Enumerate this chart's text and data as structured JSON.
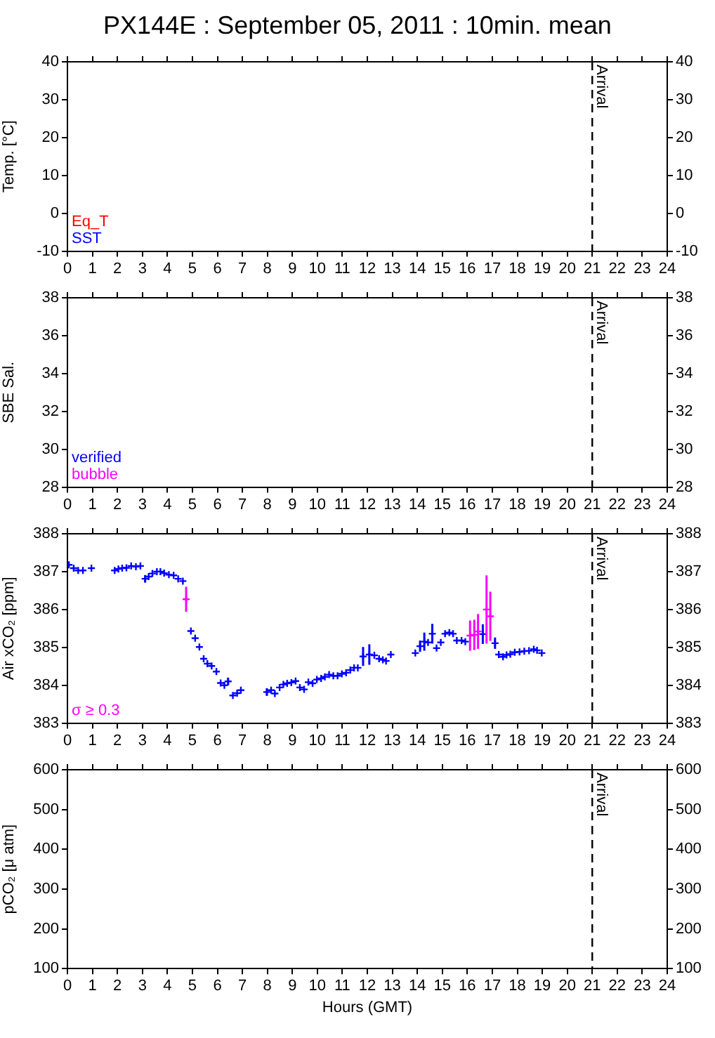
{
  "chart_data": [
    {
      "type": "scatter",
      "title": "PX144E : September 05, 2011 : 10min. mean",
      "ylabel": "Temp. [°C]",
      "xlim": [
        0,
        24
      ],
      "xticks": [
        0,
        1,
        2,
        3,
        4,
        5,
        6,
        7,
        8,
        9,
        10,
        11,
        12,
        13,
        14,
        15,
        16,
        17,
        18,
        19,
        20,
        21,
        22,
        23,
        24
      ],
      "ylim": [
        -10,
        40
      ],
      "yticks": [
        -10,
        0,
        10,
        20,
        30,
        40
      ],
      "y2lim": [
        -10,
        40
      ],
      "y2ticks": [
        -10,
        0,
        10,
        20,
        30,
        40
      ],
      "grid": false,
      "marker": "cross",
      "ref_lines": [
        {
          "axis": "x",
          "value": 21,
          "label": "Arrival",
          "line_style": "dashed"
        }
      ],
      "series": [
        {
          "name": "Eq_T",
          "color": "#ff0000",
          "x": [
            null
          ],
          "values": [
            null
          ]
        },
        {
          "name": "SST",
          "color": "#0000ff",
          "x": [
            null
          ],
          "values": [
            null
          ]
        }
      ]
    },
    {
      "type": "scatter",
      "ylabel": "SBE Sal.",
      "xlim": [
        0,
        24
      ],
      "xticks": [
        0,
        1,
        2,
        3,
        4,
        5,
        6,
        7,
        8,
        9,
        10,
        11,
        12,
        13,
        14,
        15,
        16,
        17,
        18,
        19,
        20,
        21,
        22,
        23,
        24
      ],
      "ylim": [
        28,
        38
      ],
      "yticks": [
        28,
        30,
        32,
        34,
        36,
        38
      ],
      "y2lim": [
        28,
        38
      ],
      "y2ticks": [
        28,
        30,
        32,
        34,
        36,
        38
      ],
      "grid": false,
      "marker": "cross",
      "ref_lines": [
        {
          "axis": "x",
          "value": 21,
          "label": "Arrival",
          "line_style": "dashed"
        }
      ],
      "series": [
        {
          "name": "verified",
          "color": "#0000ff",
          "x": [
            null
          ],
          "values": [
            null
          ]
        },
        {
          "name": "bubble",
          "color": "#ff00ff",
          "x": [
            null
          ],
          "values": [
            null
          ]
        }
      ]
    },
    {
      "type": "scatter",
      "ylabel": "Air xCO₂ [ppm]",
      "xlim": [
        0,
        24
      ],
      "xticks": [
        0,
        1,
        2,
        3,
        4,
        5,
        6,
        7,
        8,
        9,
        10,
        11,
        12,
        13,
        14,
        15,
        16,
        17,
        18,
        19,
        20,
        21,
        22,
        23,
        24
      ],
      "ylim": [
        383,
        388
      ],
      "yticks": [
        383,
        384,
        385,
        386,
        387,
        388
      ],
      "y2lim": [
        383,
        388
      ],
      "y2ticks": [
        383,
        384,
        385,
        386,
        387,
        388
      ],
      "grid": false,
      "marker": "cross",
      "ref_lines": [
        {
          "axis": "x",
          "value": 21,
          "label": "Arrival",
          "line_style": "dashed"
        }
      ],
      "series": [
        {
          "color": "#0000ff",
          "x": [
            0.06,
            0.25,
            0.43,
            0.62,
            0.96,
            1.89,
            2.04,
            2.19,
            2.36,
            2.55,
            2.74,
            2.92,
            3.11,
            3.25,
            3.4,
            3.58,
            3.72,
            3.87,
            4.06,
            4.25,
            4.43,
            4.62,
            4.94,
            5.11,
            5.28,
            5.45,
            5.6,
            5.77,
            5.96,
            6.13,
            6.28,
            6.43,
            6.62,
            6.79,
            6.94,
            7.98,
            8.15,
            8.3,
            8.49,
            8.64,
            8.79,
            8.96,
            9.13,
            9.3,
            9.47,
            9.64,
            9.81,
            9.98,
            10.15,
            10.3,
            10.47,
            10.64,
            10.81,
            10.98,
            11.15,
            11.32,
            11.47,
            11.62,
            11.83,
            12.08,
            12.28,
            12.47,
            12.62,
            12.75,
            12.94,
            13.92,
            14.11,
            14.28,
            14.43,
            14.6,
            14.77,
            14.94,
            15.11,
            15.28,
            15.43,
            15.58,
            15.77,
            15.92,
            16.62,
            17.11,
            17.26,
            17.43,
            17.57,
            17.72,
            17.9,
            18.09,
            18.28,
            18.47,
            18.66,
            18.79,
            18.98
          ],
          "values": [
            387.18,
            387.09,
            387.03,
            387.03,
            387.09,
            387.03,
            387.07,
            387.09,
            387.1,
            387.15,
            387.13,
            387.15,
            386.81,
            386.87,
            386.95,
            387.0,
            387.0,
            386.96,
            386.92,
            386.9,
            386.81,
            386.75,
            385.43,
            385.24,
            385.01,
            384.7,
            384.57,
            384.51,
            384.36,
            384.06,
            384.0,
            384.1,
            383.73,
            383.79,
            383.87,
            383.82,
            383.87,
            383.78,
            383.94,
            384.02,
            384.05,
            384.07,
            384.11,
            383.94,
            383.89,
            384.08,
            384.05,
            384.15,
            384.18,
            384.22,
            384.28,
            384.25,
            384.25,
            384.3,
            384.33,
            384.4,
            384.46,
            384.46,
            384.76,
            384.81,
            384.79,
            384.7,
            384.67,
            384.64,
            384.81,
            384.85,
            385.03,
            385.15,
            385.13,
            385.36,
            384.98,
            385.13,
            385.36,
            385.39,
            385.36,
            385.18,
            385.18,
            385.15,
            385.35,
            385.11,
            384.81,
            384.75,
            384.8,
            384.82,
            384.87,
            384.88,
            384.9,
            384.91,
            384.95,
            384.92,
            384.85
          ],
          "errors": [
            null,
            null,
            null,
            null,
            null,
            null,
            null,
            null,
            null,
            null,
            null,
            null,
            0.1,
            null,
            null,
            null,
            null,
            null,
            null,
            null,
            null,
            null,
            null,
            null,
            null,
            null,
            null,
            null,
            null,
            null,
            null,
            0.1,
            null,
            null,
            null,
            0.1,
            null,
            null,
            null,
            null,
            null,
            null,
            null,
            null,
            null,
            null,
            null,
            null,
            null,
            null,
            null,
            null,
            null,
            null,
            null,
            null,
            null,
            null,
            0.25,
            0.27,
            null,
            null,
            null,
            null,
            null,
            null,
            0.15,
            0.24,
            null,
            0.26,
            null,
            null,
            null,
            null,
            null,
            null,
            null,
            null,
            0.26,
            0.15,
            null,
            null,
            null,
            null,
            null,
            null,
            null,
            null,
            null,
            null,
            null
          ]
        },
        {
          "name": "σ ≥ 0.3",
          "color": "#ff00ff",
          "x": [
            4.75,
            16.11,
            16.28,
            16.43,
            16.77,
            16.92
          ],
          "values": [
            386.27,
            385.31,
            385.33,
            385.42,
            386.0,
            385.82
          ],
          "errors": [
            0.33,
            0.4,
            0.4,
            0.46,
            0.9,
            0.65
          ]
        }
      ]
    },
    {
      "type": "scatter",
      "ylabel": "pCO₂ [μ atm]",
      "xlabel": "Hours (GMT)",
      "xlim": [
        0,
        24
      ],
      "xticks": [
        0,
        1,
        2,
        3,
        4,
        5,
        6,
        7,
        8,
        9,
        10,
        11,
        12,
        13,
        14,
        15,
        16,
        17,
        18,
        19,
        20,
        21,
        22,
        23,
        24
      ],
      "ylim": [
        100,
        600
      ],
      "yticks": [
        100,
        200,
        300,
        400,
        500,
        600
      ],
      "y2lim": [
        100,
        600
      ],
      "y2ticks": [
        100,
        200,
        300,
        400,
        500,
        600
      ],
      "grid": false,
      "marker": "cross",
      "ref_lines": [
        {
          "axis": "x",
          "value": 21,
          "label": "Arrival",
          "line_style": "dashed"
        }
      ]
    }
  ]
}
